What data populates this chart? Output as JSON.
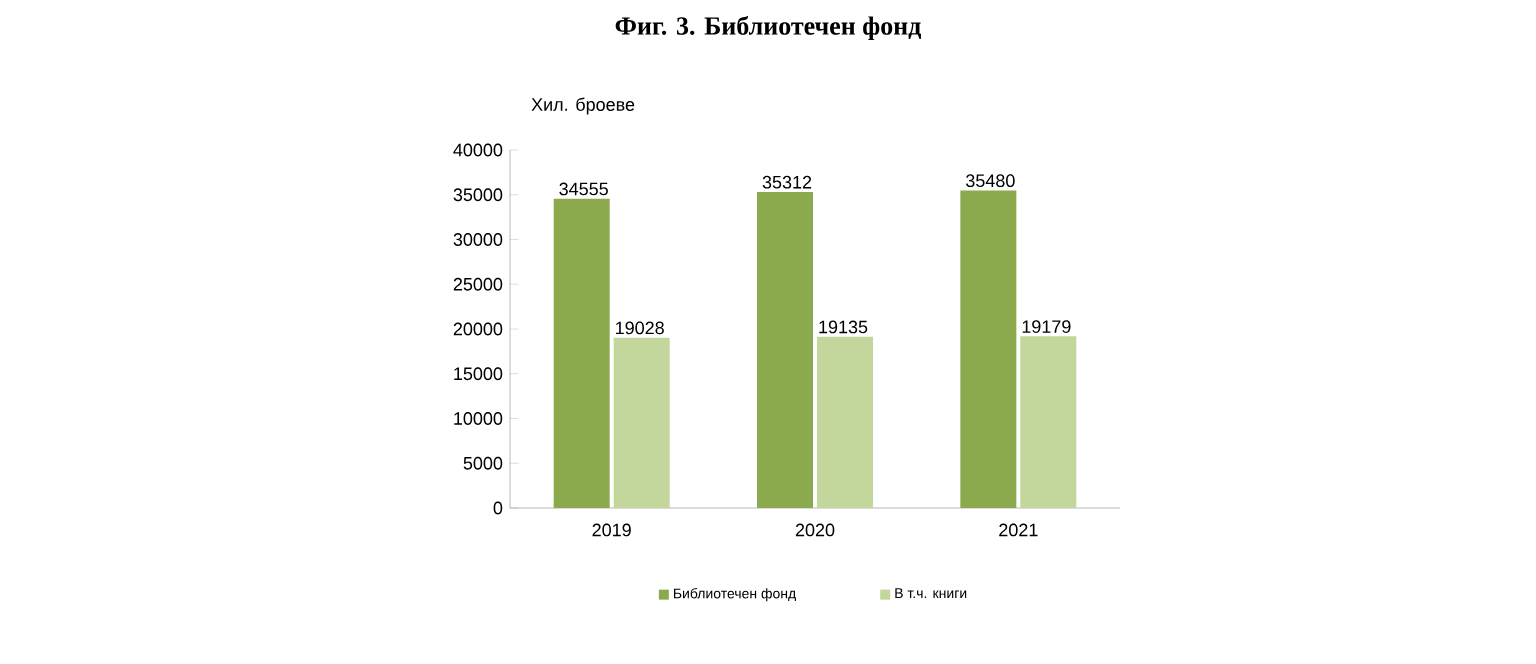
{
  "chart_data": {
    "type": "bar",
    "title": "Фиг. 3. Библиотечен фонд",
    "ylabel": "Хил. броеве",
    "categories": [
      "2019",
      "2020",
      "2021"
    ],
    "series": [
      {
        "name": "Библиотечен фонд",
        "color": "#8aaa4d",
        "values": [
          34555,
          35312,
          35480
        ]
      },
      {
        "name": "В т.ч. книги",
        "color": "#c3d69b",
        "values": [
          19028,
          19135,
          19179
        ]
      }
    ],
    "ylim": [
      0,
      40000
    ],
    "yticks": [
      0,
      5000,
      10000,
      15000,
      20000,
      25000,
      30000,
      35000,
      40000
    ],
    "grid": false,
    "legend": "bottom",
    "data_labels": true
  }
}
